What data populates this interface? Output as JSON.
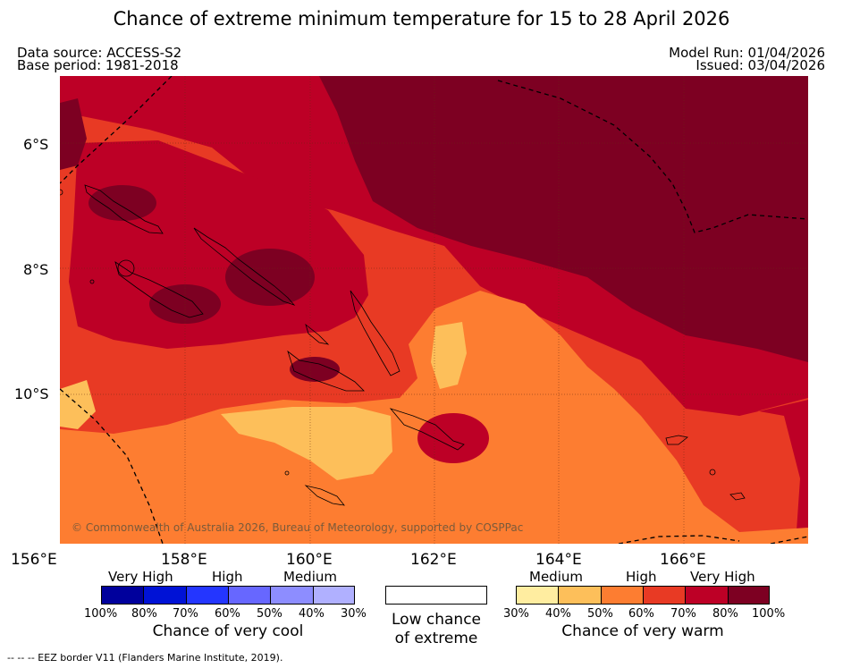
{
  "header": {
    "title": "Chance of extreme minimum temperature for 15 to 28 April 2026",
    "data_source": "Data source: ACCESS-S2",
    "base_period": "Base period: 1981-2018",
    "model_run": "Model Run: 01/04/2026",
    "issued": "Issued: 03/04/2026"
  },
  "map": {
    "lat_labels": [
      "6°S",
      "8°S",
      "10°S"
    ],
    "lon_labels": [
      "156°E",
      "158°E",
      "160°E",
      "162°E",
      "164°E",
      "166°E"
    ],
    "credit": "© Commonwealth of Australia 2026, Bureau of Meteorology, supported by COSPPac",
    "colors": {
      "very_high": "#7d0022",
      "high_dark": "#bd0026",
      "high": "#e83a24",
      "medium": "#fd7d31",
      "low_medium": "#fdbf5a"
    }
  },
  "legend": {
    "cool": {
      "categories": [
        "Very High",
        "High",
        "Medium"
      ],
      "percent_labels": [
        "100%",
        "80%",
        "70%",
        "60%",
        "50%",
        "40%",
        "30%"
      ],
      "colors": [
        "#00009c",
        "#0012d6",
        "#2436ff",
        "#6767ff",
        "#8d8dff",
        "#b0b0ff"
      ],
      "label": "Chance of very cool"
    },
    "neutral": {
      "label_line1": "Low chance",
      "label_line2": "of extreme",
      "color": "#ffffff"
    },
    "warm": {
      "categories": [
        "Medium",
        "High",
        "Very High"
      ],
      "percent_labels": [
        "30%",
        "40%",
        "50%",
        "60%",
        "70%",
        "80%",
        "100%"
      ],
      "colors": [
        "#ffeda0",
        "#fdbf5a",
        "#fd7d31",
        "#e83a24",
        "#bd0026",
        "#7d0022"
      ],
      "label": "Chance of very warm"
    }
  },
  "footer": {
    "eez_legend": "--  --  -- EEZ border V11 (Flanders Marine Institute, 2019)."
  }
}
